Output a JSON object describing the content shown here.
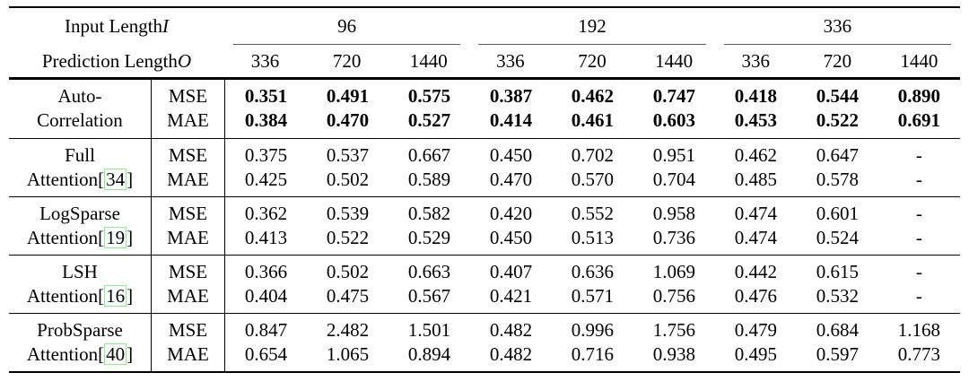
{
  "colors": {
    "citation_box": "#8ded8d",
    "rule": "#000000"
  },
  "table": {
    "bracket_open": "[",
    "bracket_close": "]",
    "header": {
      "row1_label": "Input Length ",
      "row1_var": "I",
      "row2_label": "Prediction Length ",
      "row2_var": "O",
      "input_lengths": [
        "96",
        "192",
        "336"
      ],
      "prediction_lengths": [
        "336",
        "720",
        "1440"
      ]
    },
    "metric_labels": [
      "MSE",
      "MAE"
    ],
    "groups": [
      {
        "name_line1": "Auto-",
        "name_line2": "Correlation",
        "citation": null,
        "bold": true,
        "mse": [
          "0.351",
          "0.491",
          "0.575",
          "0.387",
          "0.462",
          "0.747",
          "0.418",
          "0.544",
          "0.890"
        ],
        "mae": [
          "0.384",
          "0.470",
          "0.527",
          "0.414",
          "0.461",
          "0.603",
          "0.453",
          "0.522",
          "0.691"
        ]
      },
      {
        "name_line1": "Full",
        "name_line2": "Attention",
        "citation": "34",
        "bold": false,
        "mse": [
          "0.375",
          "0.537",
          "0.667",
          "0.450",
          "0.702",
          "0.951",
          "0.462",
          "0.647",
          "-"
        ],
        "mae": [
          "0.425",
          "0.502",
          "0.589",
          "0.470",
          "0.570",
          "0.704",
          "0.485",
          "0.578",
          "-"
        ]
      },
      {
        "name_line1": "LogSparse",
        "name_line2": "Attention",
        "citation": "19",
        "bold": false,
        "mse": [
          "0.362",
          "0.539",
          "0.582",
          "0.420",
          "0.552",
          "0.958",
          "0.474",
          "0.601",
          "-"
        ],
        "mae": [
          "0.413",
          "0.522",
          "0.529",
          "0.450",
          "0.513",
          "0.736",
          "0.474",
          "0.524",
          "-"
        ]
      },
      {
        "name_line1": "LSH",
        "name_line2": "Attention",
        "citation": "16",
        "bold": false,
        "mse": [
          "0.366",
          "0.502",
          "0.663",
          "0.407",
          "0.636",
          "1.069",
          "0.442",
          "0.615",
          "-"
        ],
        "mae": [
          "0.404",
          "0.475",
          "0.567",
          "0.421",
          "0.571",
          "0.756",
          "0.476",
          "0.532",
          "-"
        ]
      },
      {
        "name_line1": "ProbSparse",
        "name_line2": "Attention",
        "citation": "40",
        "bold": false,
        "mse": [
          "0.847",
          "2.482",
          "1.501",
          "0.482",
          "0.996",
          "1.756",
          "0.479",
          "0.684",
          "1.168"
        ],
        "mae": [
          "0.654",
          "1.065",
          "0.894",
          "0.482",
          "0.716",
          "0.938",
          "0.495",
          "0.597",
          "0.773"
        ]
      }
    ]
  }
}
